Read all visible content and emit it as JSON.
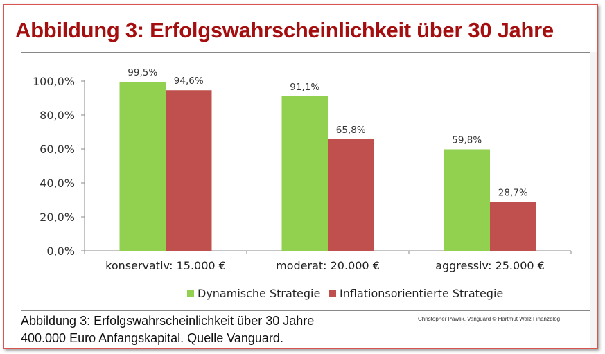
{
  "title": "Abbildung 3: Erfolgswahrscheinlichkeit über 30 Jahre",
  "caption_line1": "Abbildung 3: Erfolgswahrscheinlichkeit über 30 Jahre",
  "caption_line2": "400.000 Euro Anfangskapital. Quelle Vanguard.",
  "credit": "Christopher Pawlik, Vanguard © Hartmut  Walz Finanzblog",
  "chart_data": {
    "type": "bar",
    "categories": [
      "konservativ: 15.000 €",
      "moderat: 20.000 €",
      "aggressiv: 25.000 €"
    ],
    "series": [
      {
        "name": "Dynamische Strategie",
        "color": "#92d050",
        "values": [
          99.5,
          91.1,
          59.8
        ],
        "labels": [
          "99,5%",
          "91,1%",
          "59,8%"
        ]
      },
      {
        "name": "Inflationsorientierte Strategie",
        "color": "#c0504d",
        "values": [
          94.6,
          65.8,
          28.7
        ],
        "labels": [
          "94,6%",
          "65,8%",
          "28,7%"
        ]
      }
    ],
    "yticks": [
      0,
      20,
      40,
      60,
      80,
      100
    ],
    "ytick_labels": [
      "0,0%",
      "20,0%",
      "40,0%",
      "60,0%",
      "80,0%",
      "100,0%"
    ],
    "ylim": [
      0,
      100
    ],
    "grid": false,
    "legend": "bottom"
  }
}
